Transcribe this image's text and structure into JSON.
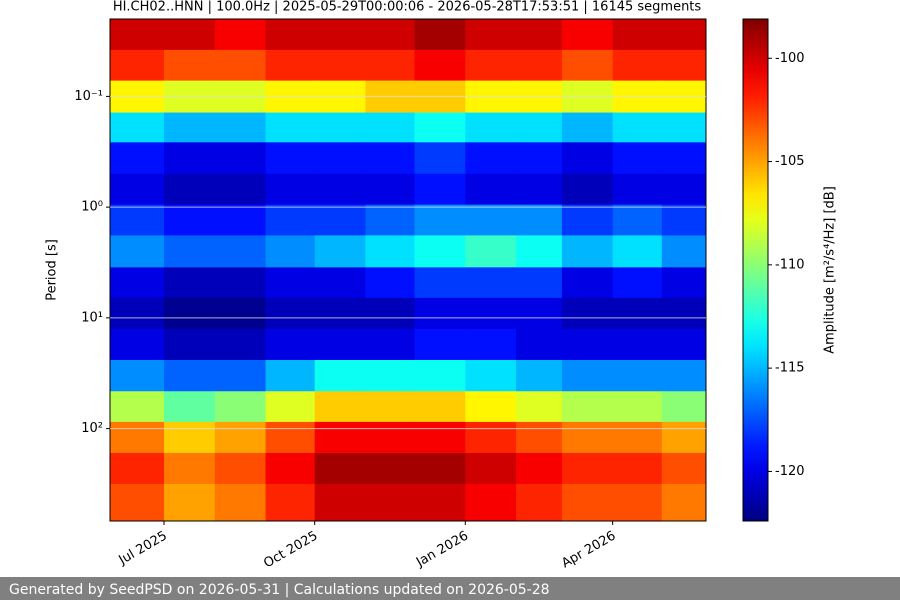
{
  "chart_data": {
    "type": "heatmap",
    "title": "HI.CH02..HNN | 100.0Hz | 2025-05-29T00:00:06 - 2026-05-28T17:53:51 | 16145 segments",
    "ylabel": "Period [s]",
    "colorbar_label": "Amplitude [m²/s⁴/Hz] [dB]",
    "colormap": "jet",
    "yscale": "log",
    "yinvert": true,
    "grid": true,
    "xlim": [
      "2025-05-29",
      "2026-05-28"
    ],
    "xticks": [
      {
        "value": "2025-07-01",
        "label": "Jul 2025"
      },
      {
        "value": "2025-10-01",
        "label": "Oct 2025"
      },
      {
        "value": "2026-01-01",
        "label": "Jan 2026"
      },
      {
        "value": "2026-04-01",
        "label": "Apr 2026"
      }
    ],
    "ylim": [
      0.02,
      683
    ],
    "yticks": [
      {
        "value": 0.1,
        "label": "10⁻¹"
      },
      {
        "value": 1,
        "label": "10⁰"
      },
      {
        "value": 10,
        "label": "10¹"
      },
      {
        "value": 100,
        "label": "10²"
      }
    ],
    "zlim": [
      -122.4,
      -98.1
    ],
    "zticks": [
      -100,
      -105,
      -110,
      -115,
      -120
    ],
    "xbins": [
      "2025-05-29",
      "2025-07-01",
      "2025-08-01",
      "2025-09-01",
      "2025-10-01",
      "2025-11-01",
      "2025-12-01",
      "2026-01-01",
      "2026-02-01",
      "2026-03-01",
      "2026-04-01",
      "2026-05-01",
      "2026-05-28"
    ],
    "ybins": [
      0.02,
      0.038,
      0.072,
      0.14,
      0.26,
      0.5,
      0.95,
      1.8,
      3.5,
      6.6,
      12.6,
      24,
      46,
      87,
      166,
      316,
      683
    ],
    "z": [
      [
        -100,
        -100,
        -101,
        -100,
        -100,
        -100,
        -99,
        -100,
        -100,
        -101,
        -100,
        -100
      ],
      [
        -102,
        -103,
        -103,
        -102,
        -102,
        -102,
        -101,
        -102,
        -102,
        -103,
        -102,
        -102
      ],
      [
        -107,
        -108,
        -108,
        -107,
        -107,
        -106,
        -106,
        -107,
        -107,
        -108,
        -107,
        -107
      ],
      [
        -114,
        -115,
        -115,
        -114,
        -114,
        -114,
        -113,
        -114,
        -114,
        -115,
        -114,
        -114
      ],
      [
        -119,
        -120,
        -120,
        -119,
        -119,
        -119,
        -118,
        -119,
        -119,
        -120,
        -119,
        -119
      ],
      [
        -120,
        -121,
        -121,
        -120,
        -120,
        -120,
        -119,
        -120,
        -120,
        -121,
        -120,
        -120
      ],
      [
        -118,
        -119,
        -119,
        -118,
        -118,
        -117,
        -116,
        -116,
        -116,
        -118,
        -117,
        -118
      ],
      [
        -116,
        -117,
        -117,
        -116,
        -115,
        -114,
        -113,
        -112,
        -113,
        -115,
        -114,
        -116
      ],
      [
        -120,
        -121,
        -121,
        -120,
        -120,
        -119,
        -118,
        -118,
        -118,
        -120,
        -119,
        -120
      ],
      [
        -121,
        -122,
        -122,
        -121,
        -121,
        -121,
        -120,
        -120,
        -120,
        -121,
        -121,
        -121
      ],
      [
        -120,
        -121,
        -121,
        -120,
        -120,
        -120,
        -119,
        -119,
        -120,
        -120,
        -120,
        -120
      ],
      [
        -116,
        -117,
        -117,
        -115,
        -113,
        -113,
        -113,
        -114,
        -115,
        -116,
        -116,
        -116
      ],
      [
        -109,
        -111,
        -110,
        -108,
        -106,
        -106,
        -106,
        -107,
        -108,
        -109,
        -109,
        -110
      ],
      [
        -104,
        -106,
        -105,
        -103,
        -101,
        -101,
        -101,
        -102,
        -103,
        -104,
        -104,
        -105
      ],
      [
        -102,
        -104,
        -103,
        -101,
        -99,
        -99,
        -99,
        -100,
        -101,
        -102,
        -102,
        -103
      ],
      [
        -103,
        -105,
        -104,
        -102,
        -100,
        -100,
        -100,
        -101,
        -102,
        -103,
        -103,
        -104
      ]
    ]
  },
  "footer": "Generated by SeedPSD on 2026-05-31 | Calculations updated on 2026-05-28"
}
